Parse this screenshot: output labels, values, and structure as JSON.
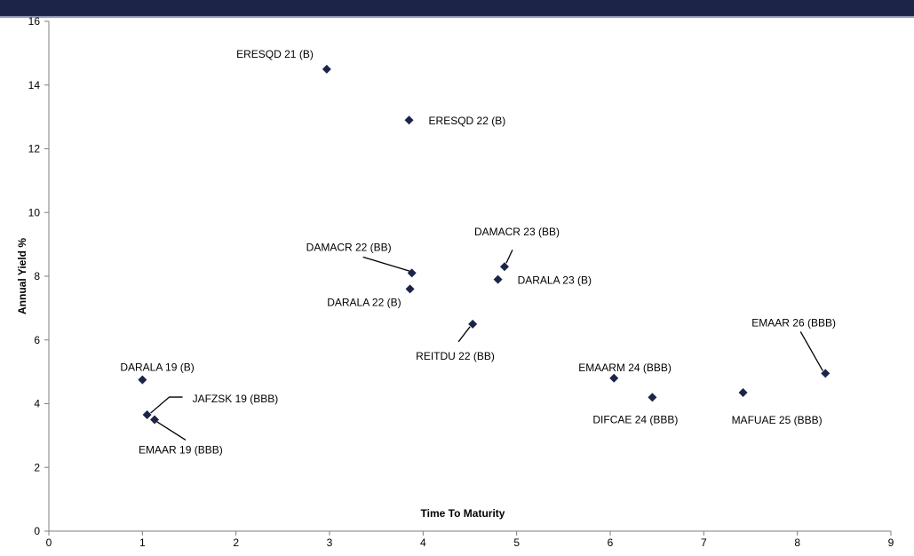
{
  "colors": {
    "header_bar": "#1c2448",
    "marker": "#1c2448",
    "axis": "#7f7f7f",
    "background": "#ffffff"
  },
  "chart_data": {
    "type": "scatter",
    "title": "",
    "xlabel": "Time To Maturity",
    "ylabel": "Annual Yield %",
    "xlim": [
      0,
      9
    ],
    "ylim": [
      0,
      16
    ],
    "xticks": [
      0,
      1,
      2,
      3,
      4,
      5,
      6,
      7,
      8,
      9
    ],
    "yticks": [
      0,
      2,
      4,
      6,
      8,
      10,
      12,
      14,
      16
    ],
    "grid": false,
    "legend": "none",
    "marker": "diamond",
    "points": [
      {
        "label": "ERESQD 21 (B)",
        "x": 2.97,
        "y": 14.5
      },
      {
        "label": "ERESQD 22 (B)",
        "x": 3.85,
        "y": 12.9
      },
      {
        "label": "DAMACR 22 (BB)",
        "x": 3.88,
        "y": 8.1
      },
      {
        "label": "DARALA 22 (B)",
        "x": 3.86,
        "y": 7.6
      },
      {
        "label": "DAMACR 23 (BB)",
        "x": 4.87,
        "y": 8.3
      },
      {
        "label": "DARALA 23 (B)",
        "x": 4.8,
        "y": 7.9
      },
      {
        "label": "REITDU 22 (BB)",
        "x": 4.53,
        "y": 6.5
      },
      {
        "label": "DARALA 19 (B)",
        "x": 1.0,
        "y": 4.75
      },
      {
        "label": "JAFZSK 19 (BBB)",
        "x": 1.05,
        "y": 3.65
      },
      {
        "label": "EMAAR 19 (BBB)",
        "x": 1.13,
        "y": 3.5
      },
      {
        "label": "EMAARM 24 (BBB)",
        "x": 6.04,
        "y": 4.8
      },
      {
        "label": "DIFCAE 24 (BBB)",
        "x": 6.45,
        "y": 4.2
      },
      {
        "label": "MAFUAE 25 (BBB)",
        "x": 7.42,
        "y": 4.35
      },
      {
        "label": "EMAAR 26 (BBB)",
        "x": 8.3,
        "y": 4.95
      }
    ]
  }
}
